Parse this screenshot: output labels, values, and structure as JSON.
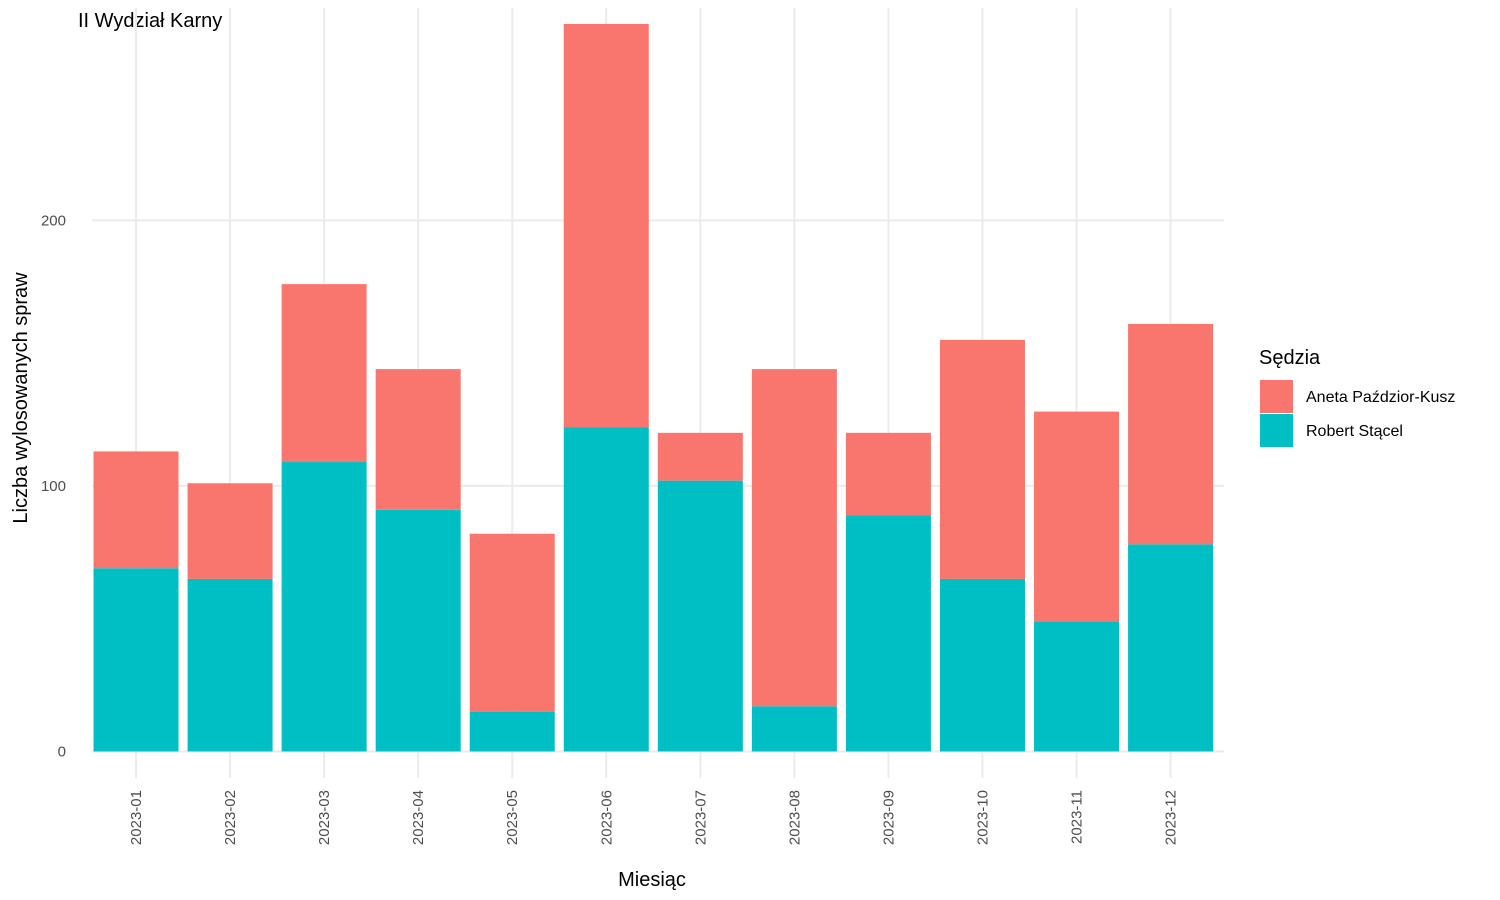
{
  "chart_data": {
    "type": "bar",
    "stacked": true,
    "title": "II Wydział Karny",
    "xlabel": "Miesiąc",
    "ylabel": "Liczba wylosowanych spraw",
    "categories": [
      "2023-01",
      "2023-02",
      "2023-03",
      "2023-04",
      "2023-05",
      "2023-06",
      "2023-07",
      "2023-08",
      "2023-09",
      "2023-10",
      "2023-11",
      "2023-12"
    ],
    "series": [
      {
        "name": "Robert Stącel",
        "color": "#00BFC4",
        "values": [
          69,
          65,
          109,
          91,
          15,
          122,
          102,
          17,
          89,
          65,
          49,
          78
        ]
      },
      {
        "name": "Aneta Paździor-Kusz",
        "color": "#F8766D",
        "values": [
          44,
          36,
          67,
          53,
          67,
          152,
          18,
          127,
          31,
          90,
          79,
          83
        ]
      }
    ],
    "stack_order": [
      "Robert Stącel",
      "Aneta Paździor-Kusz"
    ],
    "ylim": [
      -10,
      280
    ],
    "yticks": [
      "0",
      "100",
      "200"
    ],
    "ytick_values": [
      0,
      100,
      200
    ],
    "grid": true,
    "legend": {
      "title": "Sędzia",
      "placement": "right",
      "entries": [
        "Aneta Paździor-Kusz",
        "Robert Stącel"
      ]
    }
  }
}
